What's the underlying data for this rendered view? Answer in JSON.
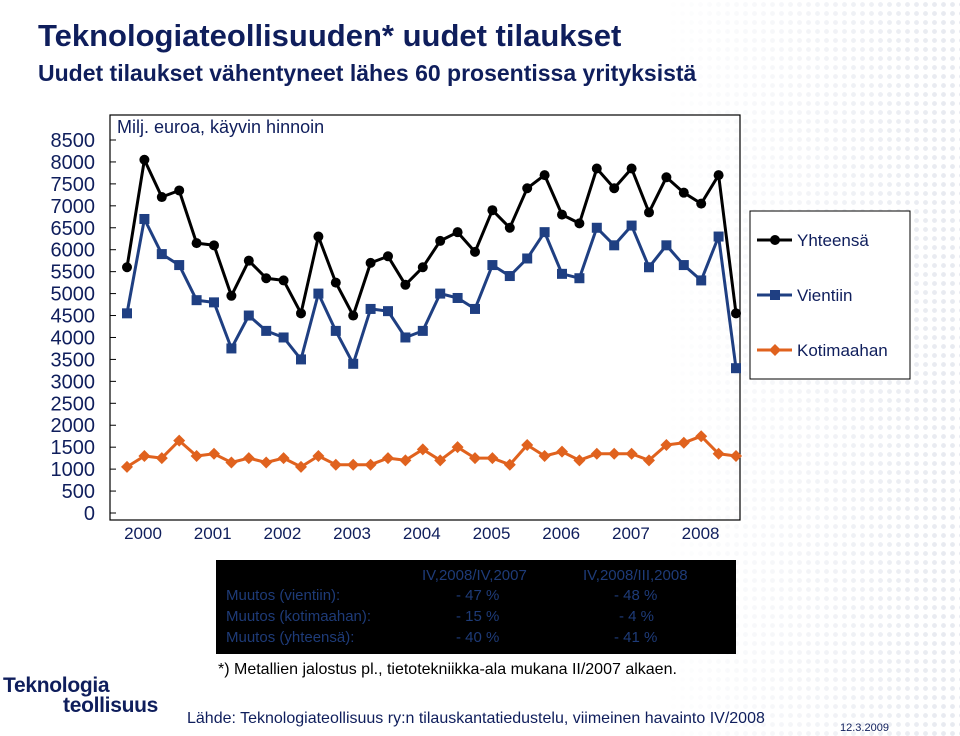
{
  "header": {
    "title": "Teknologiateollisuuden* uudet tilaukset",
    "subtitle": "Uudet tilaukset vähentyneet lähes 60 prosentissa yrityksistä"
  },
  "chart_data": {
    "type": "line",
    "ylabel": "Milj. euroa, käyvin hinnoin",
    "ylim": [
      0,
      8500
    ],
    "yticks": [
      "8500",
      "8000",
      "7500",
      "7000",
      "6500",
      "6000",
      "5500",
      "5000",
      "4500",
      "4000",
      "3500",
      "3000",
      "2500",
      "2000",
      "1500",
      "1000",
      "500",
      "0"
    ],
    "year_labels": [
      "2000",
      "2001",
      "2002",
      "2003",
      "2004",
      "2005",
      "2006",
      "2007",
      "2008"
    ],
    "legend_position": "right",
    "series": [
      {
        "name": "Yhteensä",
        "color": "#000000",
        "marker": "circle",
        "values": [
          5600,
          8050,
          7200,
          7350,
          6150,
          6100,
          4950,
          5750,
          5350,
          5300,
          4550,
          6300,
          5250,
          4500,
          5700,
          5850,
          5200,
          5600,
          6200,
          6400,
          5950,
          6900,
          6500,
          7400,
          7700,
          6800,
          6600,
          7850,
          7400,
          7850,
          6850,
          7650,
          7300,
          7050,
          7700,
          4550
        ]
      },
      {
        "name": "Vientiin",
        "color": "#1f3f82",
        "marker": "square",
        "values": [
          4550,
          6700,
          5900,
          5650,
          4850,
          4800,
          3750,
          4500,
          4150,
          4000,
          3500,
          5000,
          4150,
          3400,
          4650,
          4600,
          4000,
          4150,
          5000,
          4900,
          4650,
          5650,
          5400,
          5800,
          6400,
          5450,
          5350,
          6500,
          6100,
          6550,
          5600,
          6100,
          5650,
          5300,
          6300,
          3300
        ]
      },
      {
        "name": "Kotimaahan",
        "color": "#e0621e",
        "marker": "diamond",
        "values": [
          1050,
          1300,
          1250,
          1650,
          1300,
          1350,
          1150,
          1250,
          1150,
          1250,
          1050,
          1300,
          1100,
          1100,
          1100,
          1250,
          1200,
          1450,
          1200,
          1500,
          1250,
          1250,
          1100,
          1550,
          1300,
          1400,
          1200,
          1350,
          1350,
          1350,
          1200,
          1550,
          1600,
          1750,
          1350,
          1300
        ]
      }
    ]
  },
  "stats": {
    "col1_header": "IV,2008/IV,2007",
    "col2_header": "IV,2008/III,2008",
    "rows": [
      {
        "label": "Muutos (vientiin):",
        "v1": "- 47 %",
        "v2": "- 48 %"
      },
      {
        "label": "Muutos (kotimaahan):",
        "v1": "- 15 %",
        "v2": "- 4 %"
      },
      {
        "label": "Muutos (yhteensä):",
        "v1": "- 40 %",
        "v2": "- 41 %"
      }
    ]
  },
  "footnote": "*) Metallien jalostus pl., tietotekniikka-ala mukana II/2007 alkaen.",
  "source": "Lähde:  Teknologiateollisuus ry:n tilauskantatiedustelu, viimeinen havainto IV/2008",
  "date": "12.3.2009",
  "logo": {
    "line1": "Teknologia",
    "line2": "teollisuus"
  }
}
